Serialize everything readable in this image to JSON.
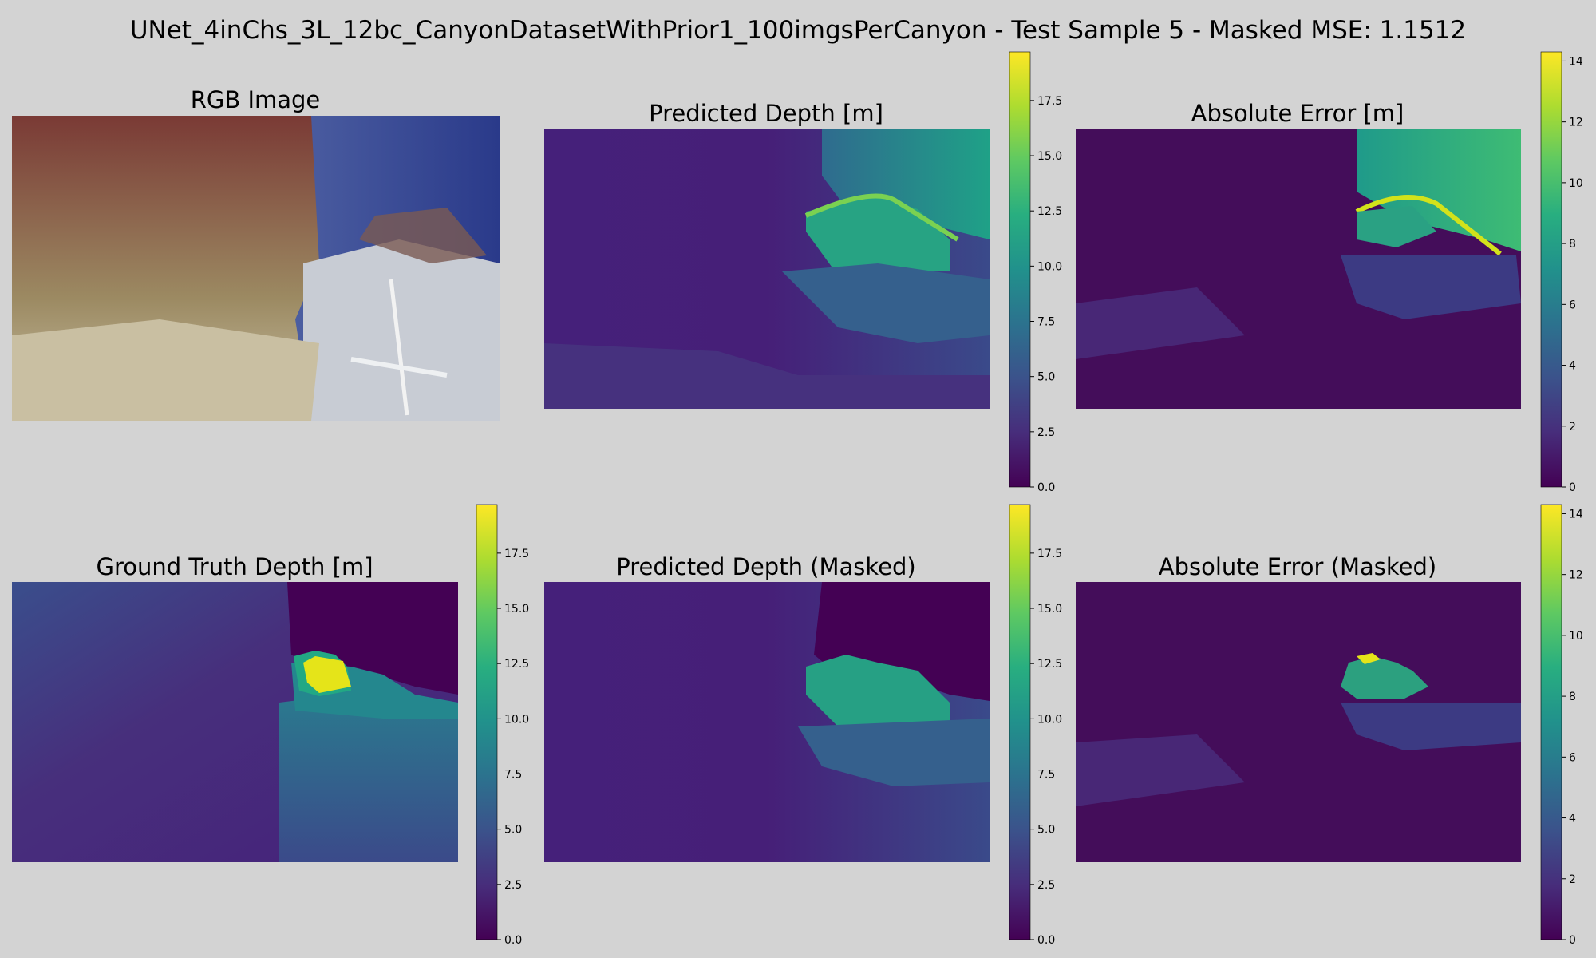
{
  "figure": {
    "suptitle": "UNet_4inChs_3L_12bc_CanyonDatasetWithPrior1_100imgsPerCanyon - Test Sample 5 - Masked MSE: 1.1512"
  },
  "panels": {
    "rgb": {
      "title": "RGB Image"
    },
    "pred": {
      "title": "Predicted Depth [m]"
    },
    "err": {
      "title": "Absolute Error [m]"
    },
    "gt": {
      "title": "Ground Truth Depth [m]"
    },
    "pred_masked": {
      "title": "Predicted Depth (Masked)"
    },
    "err_masked": {
      "title": "Absolute Error (Masked)"
    }
  },
  "colormap": {
    "name": "viridis",
    "stops": [
      "#440154",
      "#472d7b",
      "#3b528b",
      "#2c728e",
      "#21918c",
      "#28ae80",
      "#5ec962",
      "#addc30",
      "#fde725"
    ]
  },
  "chart_data": [
    {
      "type": "heatmap",
      "panel": "pred",
      "title": "Predicted Depth [m]",
      "colorbar": {
        "vmin": 0,
        "vmax": 19.7,
        "ticks": [
          "0.0",
          "2.5",
          "5.0",
          "7.5",
          "10.0",
          "12.5",
          "15.0",
          "17.5"
        ]
      }
    },
    {
      "type": "heatmap",
      "panel": "err",
      "title": "Absolute Error [m]",
      "colorbar": {
        "vmin": 0,
        "vmax": 14.3,
        "ticks": [
          "0",
          "2",
          "4",
          "6",
          "8",
          "10",
          "12",
          "14"
        ]
      }
    },
    {
      "type": "heatmap",
      "panel": "gt",
      "title": "Ground Truth Depth [m]",
      "colorbar": {
        "vmin": 0,
        "vmax": 19.7,
        "ticks": [
          "0.0",
          "2.5",
          "5.0",
          "7.5",
          "10.0",
          "12.5",
          "15.0",
          "17.5"
        ]
      }
    },
    {
      "type": "heatmap",
      "panel": "pred_masked",
      "title": "Predicted Depth (Masked)",
      "colorbar": {
        "vmin": 0,
        "vmax": 19.7,
        "ticks": [
          "0.0",
          "2.5",
          "5.0",
          "7.5",
          "10.0",
          "12.5",
          "15.0",
          "17.5"
        ]
      }
    },
    {
      "type": "heatmap",
      "panel": "err_masked",
      "title": "Absolute Error (Masked)",
      "colorbar": {
        "vmin": 0,
        "vmax": 14.3,
        "ticks": [
          "0",
          "2",
          "4",
          "6",
          "8",
          "10",
          "12",
          "14"
        ]
      }
    }
  ]
}
